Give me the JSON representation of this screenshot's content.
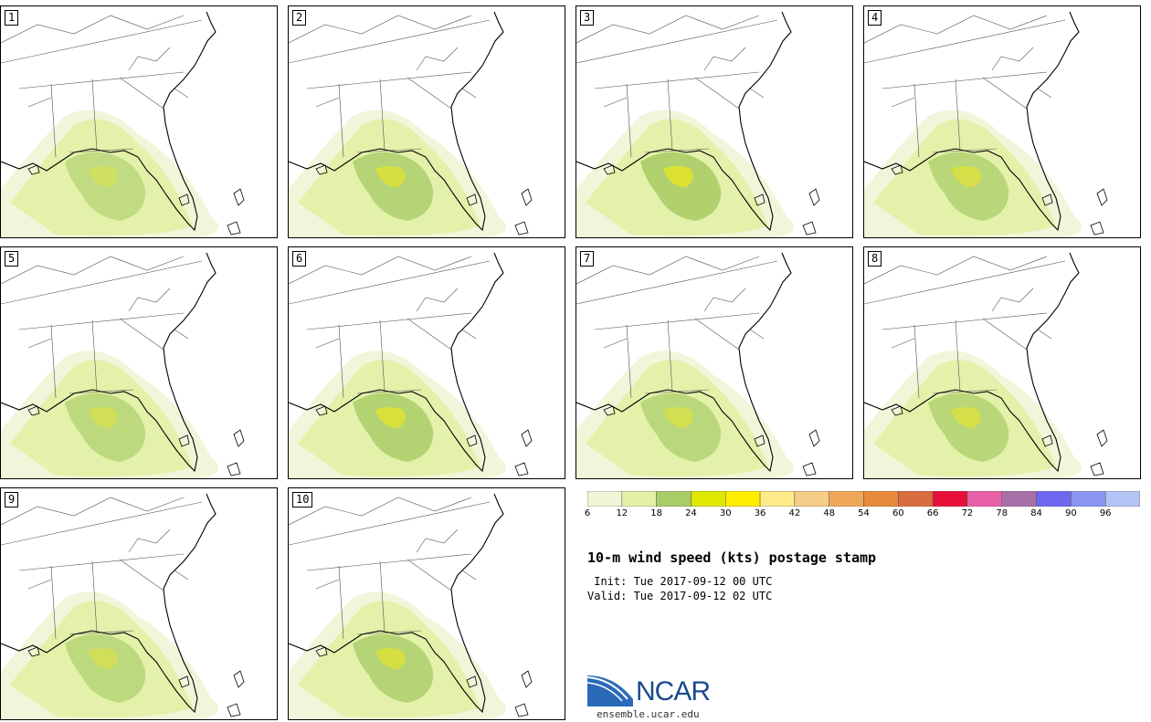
{
  "panels": [
    {
      "label": "1",
      "intensity": 0.55
    },
    {
      "label": "2",
      "intensity": 0.75
    },
    {
      "label": "3",
      "intensity": 0.85
    },
    {
      "label": "4",
      "intensity": 0.7
    },
    {
      "label": "5",
      "intensity": 0.6
    },
    {
      "label": "6",
      "intensity": 0.8
    },
    {
      "label": "7",
      "intensity": 0.65
    },
    {
      "label": "8",
      "intensity": 0.7
    },
    {
      "label": "9",
      "intensity": 0.6
    },
    {
      "label": "10",
      "intensity": 0.75
    }
  ],
  "colorbar": {
    "colors": [
      "#f0f5d8",
      "#e2f0a8",
      "#a8cc66",
      "#dfe800",
      "#ffee00",
      "#fdeb8a",
      "#f5cc88",
      "#efa858",
      "#e88a3c",
      "#d96c40",
      "#e8103a",
      "#e860a8",
      "#a870a8",
      "#6e68f0",
      "#8a96f0",
      "#b4c4f4"
    ],
    "ticks": [
      "6",
      "12",
      "18",
      "24",
      "30",
      "36",
      "42",
      "48",
      "54",
      "60",
      "66",
      "72",
      "78",
      "84",
      "90",
      "96"
    ]
  },
  "title": "10-m wind speed (kts) postage stamp",
  "init": " Init: Tue 2017-09-12 00 UTC",
  "valid": "Valid: Tue 2017-09-12 02 UTC",
  "logo": {
    "text": "NCAR",
    "site": "ensemble.ucar.edu"
  }
}
